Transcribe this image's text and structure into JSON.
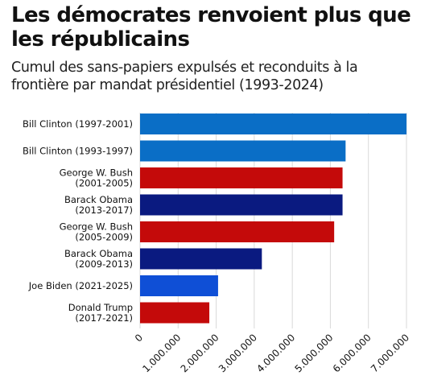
{
  "chart_data": {
    "type": "bar",
    "orientation": "horizontal",
    "title": "Les démocrates renvoient plus que les républicains",
    "subtitle": "Cumul des sans-papiers expulsés et reconduits à la frontière par mandat présidentiel (1993-2024)",
    "xlabel": "",
    "ylabel": "",
    "xlim": [
      0,
      7000000
    ],
    "grid": true,
    "categories": [
      [
        "Bill Clinton (1997-2001)"
      ],
      [
        "Bill Clinton (1993-1997)"
      ],
      [
        "George W. Bush",
        "(2001-2005)"
      ],
      [
        "Barack Obama",
        "(2013-2017)"
      ],
      [
        "George W. Bush",
        "(2005-2009)"
      ],
      [
        "Barack Obama",
        "(2009-2013)"
      ],
      [
        "Joe Biden (2021-2025)"
      ],
      [
        "Donald Trump",
        "(2017-2021)"
      ]
    ],
    "values": [
      7000000,
      5400000,
      5320000,
      5320000,
      5100000,
      3200000,
      2050000,
      1820000
    ],
    "colors": [
      "#0a6ec6",
      "#0a6ec6",
      "#c40a0a",
      "#0a1a80",
      "#c40a0a",
      "#0a1a80",
      "#0f4fd6",
      "#c40a0a"
    ],
    "ticks": [
      {
        "value": 0,
        "label": "0"
      },
      {
        "value": 1000000,
        "label": "1.000.000"
      },
      {
        "value": 2000000,
        "label": "2.000.000"
      },
      {
        "value": 3000000,
        "label": "3.000.000"
      },
      {
        "value": 4000000,
        "label": "4.000.000"
      },
      {
        "value": 5000000,
        "label": "5.000.000"
      },
      {
        "value": 6000000,
        "label": "6.000.000"
      },
      {
        "value": 7000000,
        "label": "7.000.000"
      }
    ],
    "gridline_color": "#d9d9d9"
  }
}
